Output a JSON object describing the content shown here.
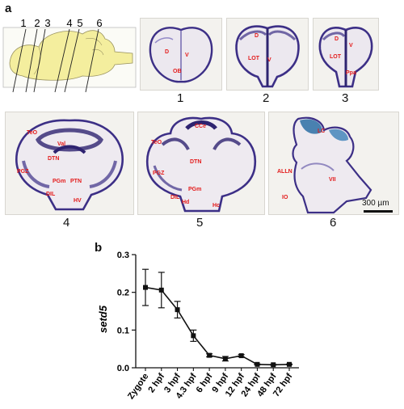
{
  "panel_a": {
    "letter": "a",
    "brain_lines": [
      "1",
      "2",
      "3",
      "4",
      "5",
      "6"
    ],
    "sections": [
      {
        "number": "1",
        "labels": [
          "D",
          "V",
          "OB"
        ]
      },
      {
        "number": "2",
        "labels": [
          "D",
          "LOT",
          "V"
        ]
      },
      {
        "number": "3",
        "labels": [
          "D",
          "V",
          "LOT",
          "Ppa"
        ]
      },
      {
        "number": "4",
        "labels": [
          "TeO",
          "Val",
          "DTN",
          "PGZ",
          "PGm",
          "PTN",
          "DIL",
          "HV"
        ]
      },
      {
        "number": "5",
        "labels": [
          "CCe",
          "TeO",
          "DTN",
          "PGZ",
          "PGm",
          "DIL",
          "Hd",
          "Hc"
        ]
      },
      {
        "number": "6",
        "labels": [
          "LC",
          "ALLN",
          "VII",
          "IO"
        ]
      }
    ],
    "scale_bar": "300 µm"
  },
  "panel_b": {
    "letter": "b"
  },
  "chart_data": {
    "type": "line",
    "ylabel": "setd5",
    "xlabel": "",
    "categories": [
      "Zygote",
      "2 hpf",
      "3 hpf",
      "4.3 hpf",
      "6 hpf",
      "9 hpf",
      "12 hpf",
      "24 hpf",
      "48 hpf",
      "72 hpf"
    ],
    "values": [
      0.213,
      0.206,
      0.154,
      0.085,
      0.033,
      0.024,
      0.032,
      0.009,
      0.008,
      0.009
    ],
    "errors": [
      0.048,
      0.047,
      0.022,
      0.015,
      0.004,
      0.006,
      0.003,
      0.001,
      0.001,
      0.001
    ],
    "ylim": [
      0,
      0.3
    ],
    "yticks": [
      "0.0",
      "0.1",
      "0.2",
      "0.3"
    ],
    "grid": false,
    "color": "#111111"
  }
}
